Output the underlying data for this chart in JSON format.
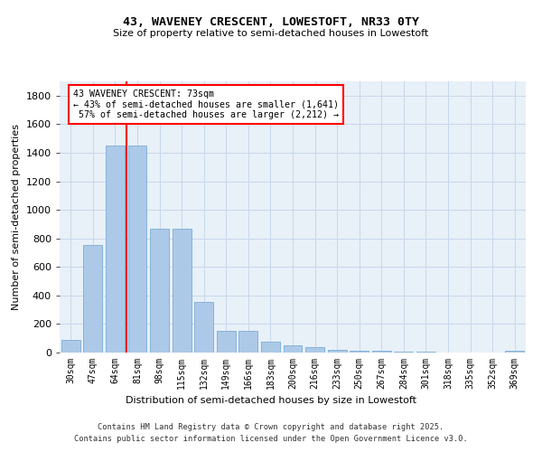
{
  "title1": "43, WAVENEY CRESCENT, LOWESTOFT, NR33 0TY",
  "title2": "Size of property relative to semi-detached houses in Lowestoft",
  "xlabel": "Distribution of semi-detached houses by size in Lowestoft",
  "ylabel": "Number of semi-detached properties",
  "categories": [
    "30sqm",
    "47sqm",
    "64sqm",
    "81sqm",
    "98sqm",
    "115sqm",
    "132sqm",
    "149sqm",
    "166sqm",
    "183sqm",
    "200sqm",
    "216sqm",
    "233sqm",
    "250sqm",
    "267sqm",
    "284sqm",
    "301sqm",
    "318sqm",
    "335sqm",
    "352sqm",
    "369sqm"
  ],
  "values": [
    90,
    755,
    1450,
    1450,
    870,
    870,
    355,
    155,
    155,
    75,
    50,
    35,
    22,
    14,
    10,
    6,
    4,
    2,
    1,
    1,
    15
  ],
  "bar_color": "#adc9e8",
  "bar_edge_color": "#7aadd4",
  "property_sqm": 73,
  "pct_smaller": 43,
  "pct_larger": 57,
  "count_smaller": 1641,
  "count_larger": 2212,
  "grid_color": "#c8d8ea",
  "background_color": "#e8f0f8",
  "ylim": [
    0,
    1900
  ],
  "yticks": [
    0,
    200,
    400,
    600,
    800,
    1000,
    1200,
    1400,
    1600,
    1800
  ],
  "footer1": "Contains HM Land Registry data © Crown copyright and database right 2025.",
  "footer2": "Contains public sector information licensed under the Open Government Licence v3.0."
}
